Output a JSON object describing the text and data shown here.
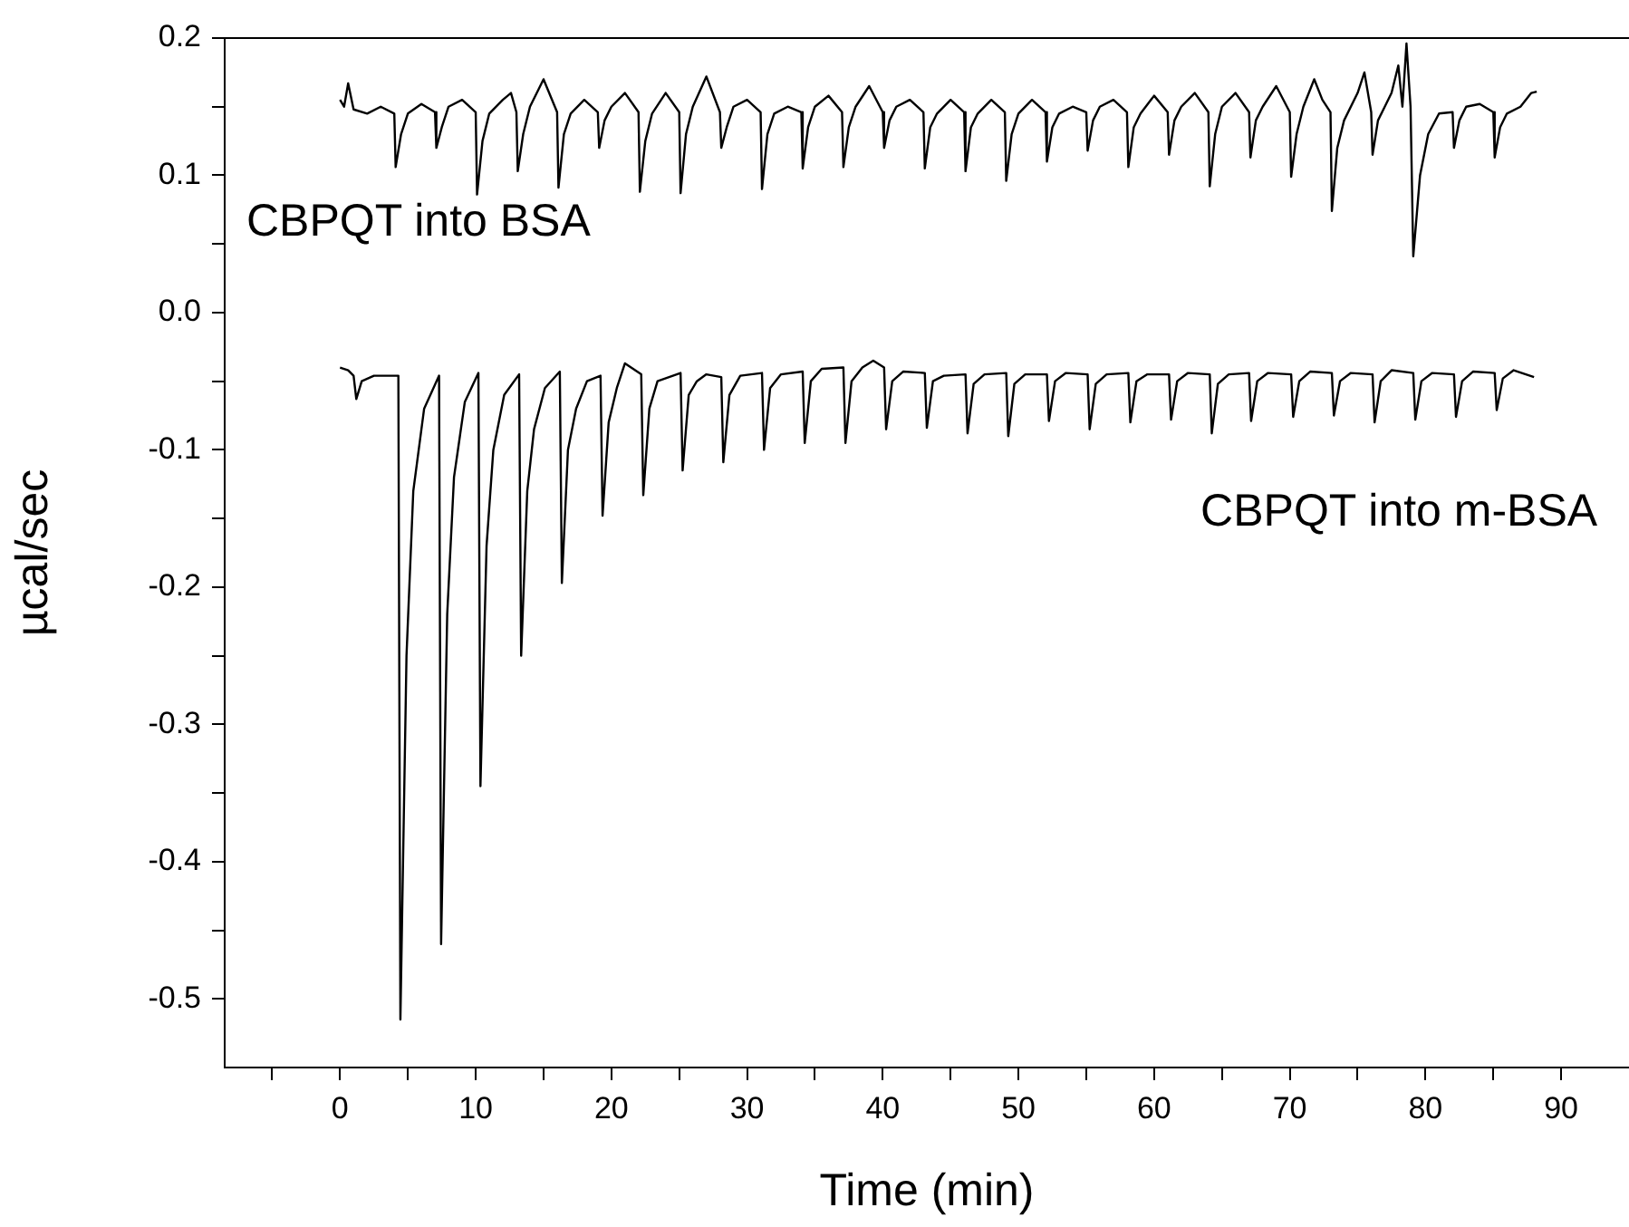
{
  "chart_data": {
    "type": "line",
    "xlabel": "Time (min)",
    "ylabel": "µcal/sec",
    "xlim": [
      -8.5,
      95
    ],
    "ylim": [
      -0.55,
      0.2
    ],
    "xticks": [
      {
        "value": -5,
        "label": null
      },
      0,
      {
        "value": 5,
        "label": null
      },
      10,
      {
        "value": 15,
        "label": null
      },
      20,
      {
        "value": 25,
        "label": null
      },
      30,
      {
        "value": 35,
        "label": null
      },
      40,
      {
        "value": 45,
        "label": null
      },
      50,
      {
        "value": 55,
        "label": null
      },
      60,
      {
        "value": 65,
        "label": null
      },
      70,
      {
        "value": 75,
        "label": null
      },
      80,
      {
        "value": 85,
        "label": null
      },
      90
    ],
    "yticks": [
      -0.5,
      {
        "value": -0.45,
        "label": null
      },
      -0.4,
      {
        "value": -0.35,
        "label": null
      },
      -0.3,
      {
        "value": -0.25,
        "label": null
      },
      -0.2,
      {
        "value": -0.15,
        "label": null
      },
      -0.1,
      {
        "value": -0.05,
        "label": null
      },
      {
        "value": 0,
        "label": "0.0"
      },
      {
        "value": 0.05,
        "label": null
      },
      0.1,
      {
        "value": 0.15,
        "label": null
      },
      0.2
    ],
    "grid": false,
    "legend": false,
    "series": [
      {
        "name": "CBPQT into BSA",
        "color": "#000000",
        "x": [
          0,
          0.3,
          0.6,
          1,
          2,
          3,
          4.0,
          4.1,
          4.5,
          5.0,
          6.0,
          7.0,
          7.1,
          7.5,
          8.0,
          9.0,
          10.0,
          10.1,
          10.5,
          11.0,
          12.0,
          12.6,
          13.0,
          13.1,
          13.5,
          14.0,
          15.0,
          16.0,
          16.1,
          16.5,
          17.0,
          18.0,
          19.0,
          19.1,
          19.5,
          20.0,
          21.0,
          22.0,
          22.1,
          22.5,
          23.0,
          24.0,
          25.0,
          25.1,
          25.5,
          26.0,
          27.0,
          28.0,
          28.1,
          28.5,
          29.0,
          30.0,
          31.0,
          31.1,
          31.5,
          32.0,
          33.0,
          34.0,
          34.1,
          34.5,
          35.0,
          36.0,
          37.0,
          37.1,
          37.5,
          38.0,
          39.0,
          40.0,
          40.1,
          40.5,
          41.0,
          42.0,
          43.0,
          43.1,
          43.5,
          44.0,
          45.0,
          46.0,
          46.1,
          46.5,
          47.0,
          48.0,
          49.0,
          49.1,
          49.5,
          50.0,
          51.0,
          52.0,
          52.1,
          52.5,
          53.0,
          54.0,
          55.0,
          55.1,
          55.5,
          56.0,
          57.0,
          58.0,
          58.1,
          58.5,
          59.0,
          60.0,
          61.0,
          61.1,
          61.5,
          62.0,
          63.0,
          64.0,
          64.1,
          64.5,
          65.0,
          66.0,
          67.0,
          67.1,
          67.5,
          68.0,
          69.0,
          70.0,
          70.1,
          70.5,
          71.0,
          71.8,
          72.4,
          73.0,
          73.1,
          73.5,
          74.0,
          75.0,
          75.5,
          76.0,
          76.1,
          76.5,
          77.0,
          77.5,
          78.0,
          78.3,
          78.6,
          78.9,
          79.1,
          79.6,
          80.2,
          81.0,
          82.0,
          82.1,
          82.5,
          83.0,
          84.0,
          85.0,
          85.1,
          85.5,
          86.0,
          87.0,
          87.8,
          88.2
        ],
        "values": [
          0.155,
          0.15,
          0.167,
          0.148,
          0.145,
          0.15,
          0.145,
          0.106,
          0.13,
          0.145,
          0.152,
          0.146,
          0.12,
          0.135,
          0.15,
          0.155,
          0.146,
          0.086,
          0.125,
          0.145,
          0.155,
          0.16,
          0.146,
          0.103,
          0.13,
          0.15,
          0.17,
          0.146,
          0.091,
          0.13,
          0.145,
          0.155,
          0.146,
          0.12,
          0.14,
          0.15,
          0.16,
          0.146,
          0.088,
          0.125,
          0.145,
          0.16,
          0.146,
          0.087,
          0.13,
          0.15,
          0.172,
          0.146,
          0.12,
          0.135,
          0.15,
          0.155,
          0.146,
          0.09,
          0.13,
          0.145,
          0.15,
          0.146,
          0.105,
          0.135,
          0.15,
          0.158,
          0.146,
          0.106,
          0.135,
          0.15,
          0.165,
          0.146,
          0.12,
          0.14,
          0.15,
          0.155,
          0.146,
          0.105,
          0.135,
          0.145,
          0.155,
          0.146,
          0.103,
          0.135,
          0.145,
          0.155,
          0.146,
          0.096,
          0.13,
          0.145,
          0.155,
          0.146,
          0.11,
          0.135,
          0.145,
          0.15,
          0.146,
          0.118,
          0.14,
          0.15,
          0.155,
          0.146,
          0.106,
          0.135,
          0.145,
          0.158,
          0.146,
          0.115,
          0.14,
          0.15,
          0.16,
          0.146,
          0.092,
          0.13,
          0.15,
          0.16,
          0.146,
          0.113,
          0.14,
          0.15,
          0.165,
          0.146,
          0.099,
          0.13,
          0.15,
          0.17,
          0.155,
          0.146,
          0.074,
          0.12,
          0.14,
          0.16,
          0.175,
          0.146,
          0.115,
          0.14,
          0.15,
          0.16,
          0.18,
          0.15,
          0.196,
          0.15,
          0.041,
          0.1,
          0.13,
          0.145,
          0.146,
          0.12,
          0.14,
          0.15,
          0.152,
          0.146,
          0.113,
          0.135,
          0.145,
          0.15,
          0.16,
          0.161
        ]
      },
      {
        "name": "CBPQT into m-BSA",
        "color": "#000000",
        "x": [
          0,
          0.6,
          1.0,
          1.2,
          1.6,
          2.5,
          4.3,
          4.45,
          4.9,
          5.4,
          6.2,
          7.3,
          7.45,
          7.9,
          8.4,
          9.2,
          10.2,
          10.35,
          10.8,
          11.3,
          12.1,
          13.2,
          13.35,
          13.8,
          14.3,
          15.1,
          16.2,
          16.35,
          16.8,
          17.4,
          18.2,
          19.2,
          19.35,
          19.8,
          20.4,
          21.0,
          22.2,
          22.35,
          22.8,
          23.4,
          25.1,
          25.25,
          25.7,
          26.3,
          27.0,
          28.1,
          28.25,
          28.7,
          29.5,
          31.1,
          31.25,
          31.7,
          32.5,
          34.1,
          34.25,
          34.7,
          35.5,
          37.1,
          37.25,
          37.7,
          38.5,
          39.3,
          40.1,
          40.25,
          40.7,
          41.5,
          43.1,
          43.25,
          43.7,
          44.5,
          46.1,
          46.25,
          46.7,
          47.5,
          49.1,
          49.25,
          49.7,
          50.5,
          52.1,
          52.25,
          52.7,
          53.5,
          55.1,
          55.25,
          55.7,
          56.5,
          58.1,
          58.25,
          58.7,
          59.5,
          61.1,
          61.25,
          61.7,
          62.5,
          64.1,
          64.25,
          64.7,
          65.5,
          67.0,
          67.15,
          67.6,
          68.4,
          70.1,
          70.25,
          70.7,
          71.5,
          73.1,
          73.25,
          73.7,
          74.5,
          76.1,
          76.25,
          76.7,
          77.5,
          79.1,
          79.25,
          79.7,
          80.5,
          82.1,
          82.25,
          82.7,
          83.5,
          85.1,
          85.25,
          85.7,
          86.5,
          88.0
        ],
        "values": [
          -0.04,
          -0.042,
          -0.046,
          -0.063,
          -0.05,
          -0.046,
          -0.046,
          -0.515,
          -0.25,
          -0.13,
          -0.07,
          -0.046,
          -0.46,
          -0.22,
          -0.12,
          -0.065,
          -0.044,
          -0.345,
          -0.17,
          -0.1,
          -0.06,
          -0.045,
          -0.25,
          -0.13,
          -0.085,
          -0.055,
          -0.043,
          -0.197,
          -0.1,
          -0.07,
          -0.05,
          -0.046,
          -0.148,
          -0.08,
          -0.055,
          -0.037,
          -0.045,
          -0.133,
          -0.07,
          -0.05,
          -0.044,
          -0.115,
          -0.06,
          -0.05,
          -0.045,
          -0.047,
          -0.109,
          -0.06,
          -0.046,
          -0.044,
          -0.1,
          -0.055,
          -0.045,
          -0.043,
          -0.095,
          -0.05,
          -0.041,
          -0.04,
          -0.095,
          -0.05,
          -0.04,
          -0.035,
          -0.04,
          -0.085,
          -0.05,
          -0.043,
          -0.044,
          -0.084,
          -0.05,
          -0.046,
          -0.045,
          -0.088,
          -0.052,
          -0.045,
          -0.044,
          -0.09,
          -0.052,
          -0.045,
          -0.045,
          -0.079,
          -0.05,
          -0.044,
          -0.045,
          -0.085,
          -0.052,
          -0.045,
          -0.044,
          -0.08,
          -0.05,
          -0.045,
          -0.045,
          -0.078,
          -0.05,
          -0.044,
          -0.045,
          -0.088,
          -0.052,
          -0.045,
          -0.044,
          -0.079,
          -0.05,
          -0.044,
          -0.045,
          -0.076,
          -0.05,
          -0.043,
          -0.044,
          -0.075,
          -0.05,
          -0.044,
          -0.045,
          -0.08,
          -0.05,
          -0.042,
          -0.044,
          -0.078,
          -0.05,
          -0.044,
          -0.045,
          -0.076,
          -0.05,
          -0.043,
          -0.044,
          -0.071,
          -0.048,
          -0.042,
          -0.047
        ]
      }
    ]
  }
}
